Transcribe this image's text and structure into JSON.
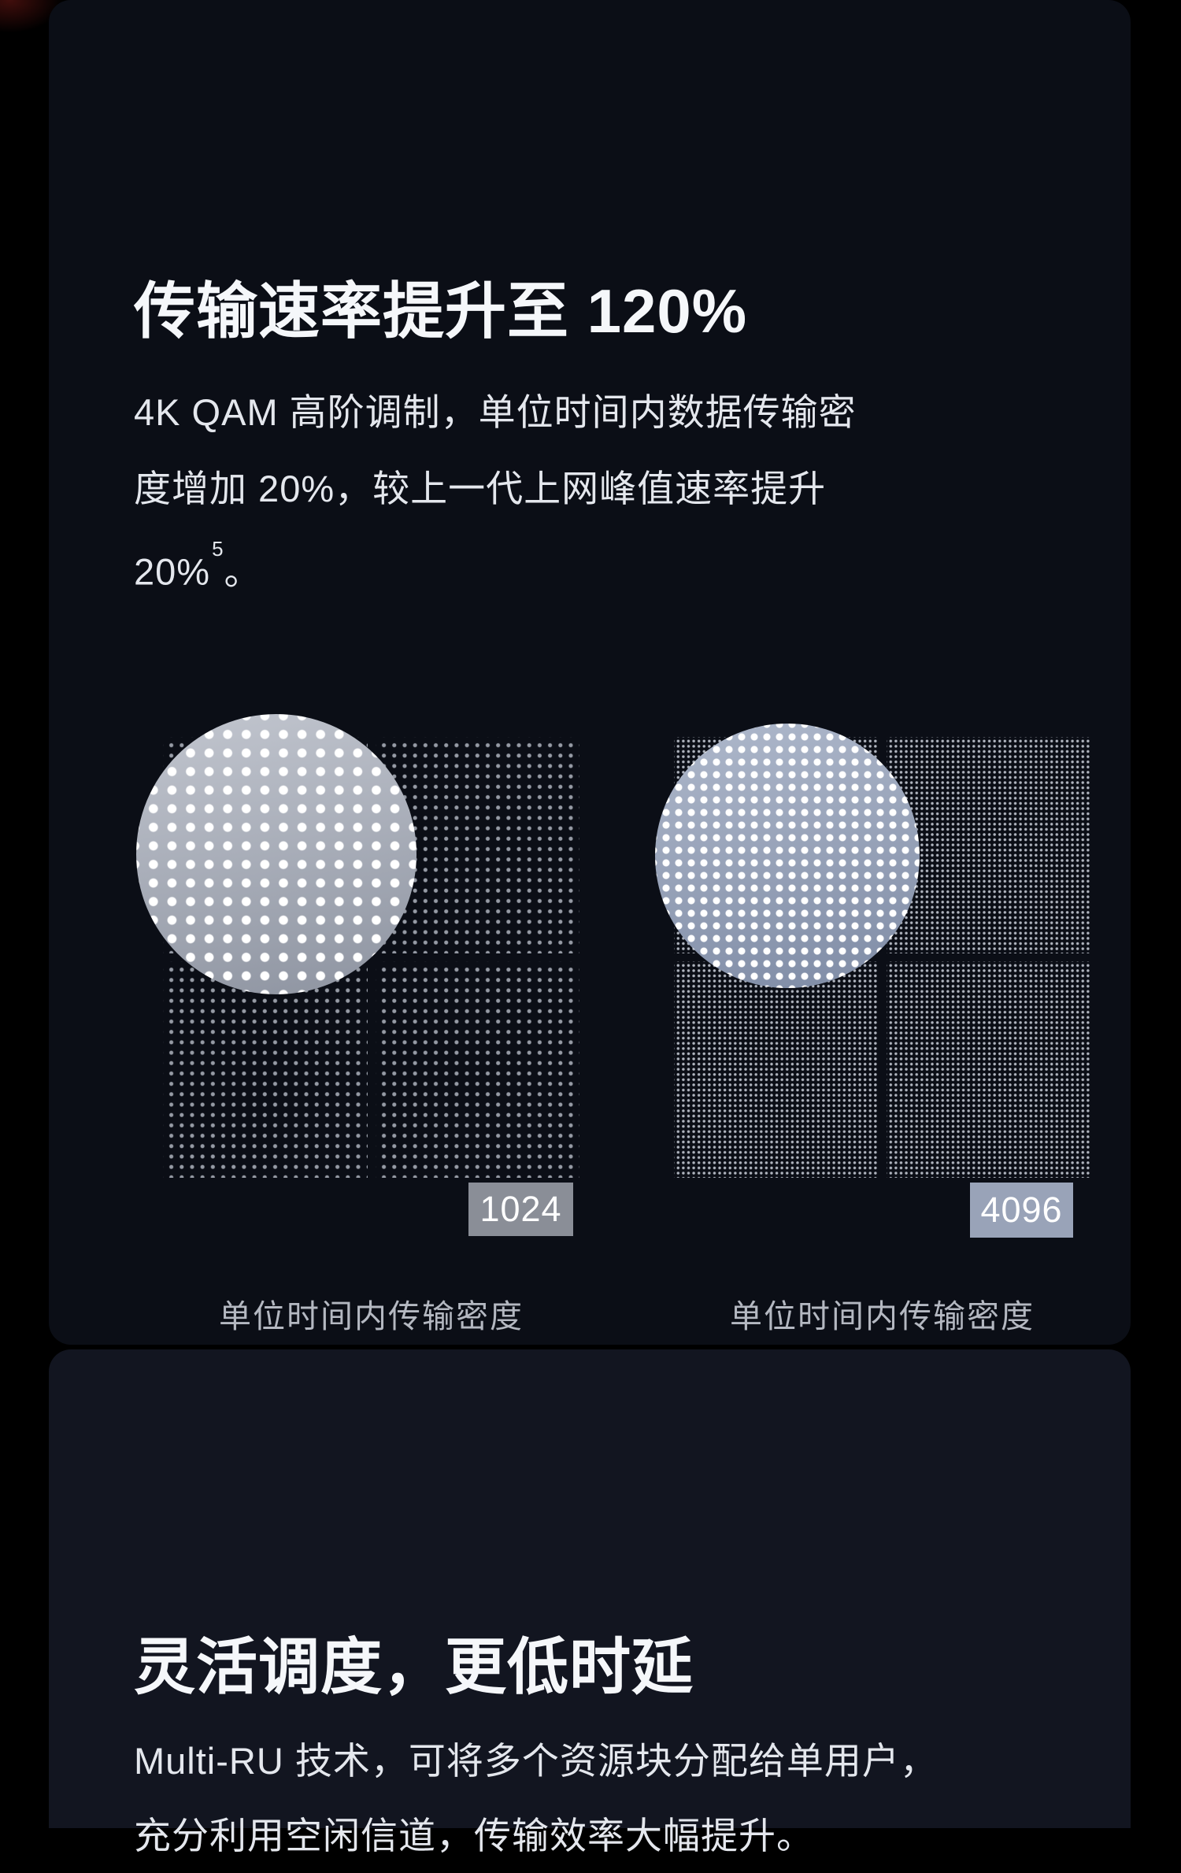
{
  "colors": {
    "page_bg": "#000000",
    "card1_bg": "#0b0e16",
    "card2_bg": "#121520",
    "title_color": "#f5f7fa",
    "body_color": "#e4e7ed",
    "caption_color": "#b4b8c1",
    "chip_1024_bg": "#8a8e97",
    "chip_4096_bg": "#99a3b8",
    "chip_text": "#ffffff",
    "grid_dot_sparse": "#969ba5",
    "grid_dot_dense": "#b0b5bf",
    "magnifier_dot": "#ffffff"
  },
  "section_qam": {
    "title": "传输速率提升至 120%",
    "body_lines": [
      "4K QAM 高阶调制，单位时间内数据传输密",
      "度增加 20%，较上一代上网峰值速率提升"
    ],
    "body_line3": {
      "text": "20%",
      "superscript": "5",
      "period": "。"
    },
    "figures": [
      {
        "label": "1024",
        "caption": "单位时间内传输密度",
        "density": "low"
      },
      {
        "label": "4096",
        "caption": "单位时间内传输密度",
        "density": "high"
      }
    ]
  },
  "section_multiru": {
    "title": "灵活调度，更低时延",
    "body_lines": [
      "Multi-RU 技术，可将多个资源块分配给单用户，",
      "充分利用空闲信道，传输效率大幅提升。"
    ]
  }
}
